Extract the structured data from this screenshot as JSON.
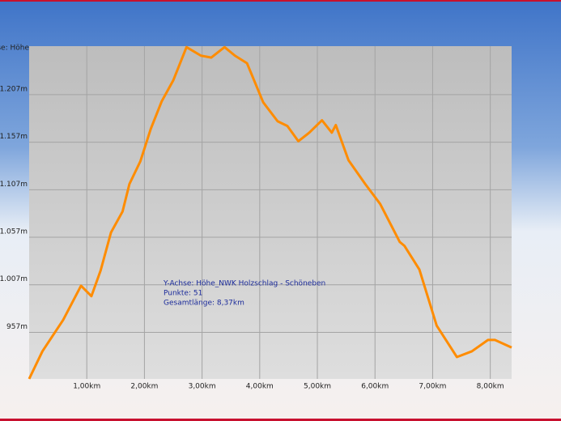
{
  "chart_data": {
    "type": "line",
    "y_label": "Y-Achse: Höhe",
    "annotations": [
      "Y-Achse: Höhe_NWK Holzschlag - Schöneben",
      "Punkte: 51",
      "Gesamtlänge: 8,37km"
    ],
    "x": [
      0,
      0.23,
      0.59,
      0.9,
      1.08,
      1.24,
      1.42,
      1.62,
      1.74,
      1.93,
      2.11,
      2.3,
      2.5,
      2.73,
      2.98,
      3.16,
      3.39,
      3.57,
      3.78,
      4.06,
      4.31,
      4.48,
      4.67,
      4.86,
      5.08,
      5.25,
      5.32,
      5.54,
      5.83,
      6.09,
      6.43,
      6.51,
      6.77,
      7.07,
      7.42,
      7.68,
      7.96,
      8.08,
      8.37
    ],
    "series": [
      {
        "name": "Höhe",
        "color": "#ff8c00",
        "values": [
          908,
          937,
          970,
          1006,
          995,
          1022,
          1062,
          1084,
          1113,
          1137,
          1171,
          1200,
          1222,
          1257,
          1248,
          1246,
          1257,
          1248,
          1240,
          1199,
          1179,
          1174,
          1158,
          1167,
          1180,
          1167,
          1175,
          1138,
          1113,
          1092,
          1052,
          1048,
          1023,
          964,
          931,
          937,
          949,
          949,
          941
        ]
      }
    ],
    "xlim": [
      0,
      8.37
    ],
    "ylim": [
      908,
      1258
    ],
    "xticks": [
      {
        "value": 1,
        "label": "1,00km"
      },
      {
        "value": 2,
        "label": "2,00km"
      },
      {
        "value": 3,
        "label": "3,00km"
      },
      {
        "value": 4,
        "label": "4,00km"
      },
      {
        "value": 5,
        "label": "5,00km"
      },
      {
        "value": 6,
        "label": "6,00km"
      },
      {
        "value": 7,
        "label": "7,00km"
      },
      {
        "value": 8,
        "label": "8,00km"
      }
    ],
    "yticks": [
      {
        "value": 957,
        "label": "957m"
      },
      {
        "value": 1007,
        "label": "1.007m"
      },
      {
        "value": 1057,
        "label": "1.057m"
      },
      {
        "value": 1107,
        "label": "1.107m"
      },
      {
        "value": 1157,
        "label": "1.157m"
      },
      {
        "value": 1207,
        "label": "1.207m"
      }
    ],
    "grid": true
  }
}
